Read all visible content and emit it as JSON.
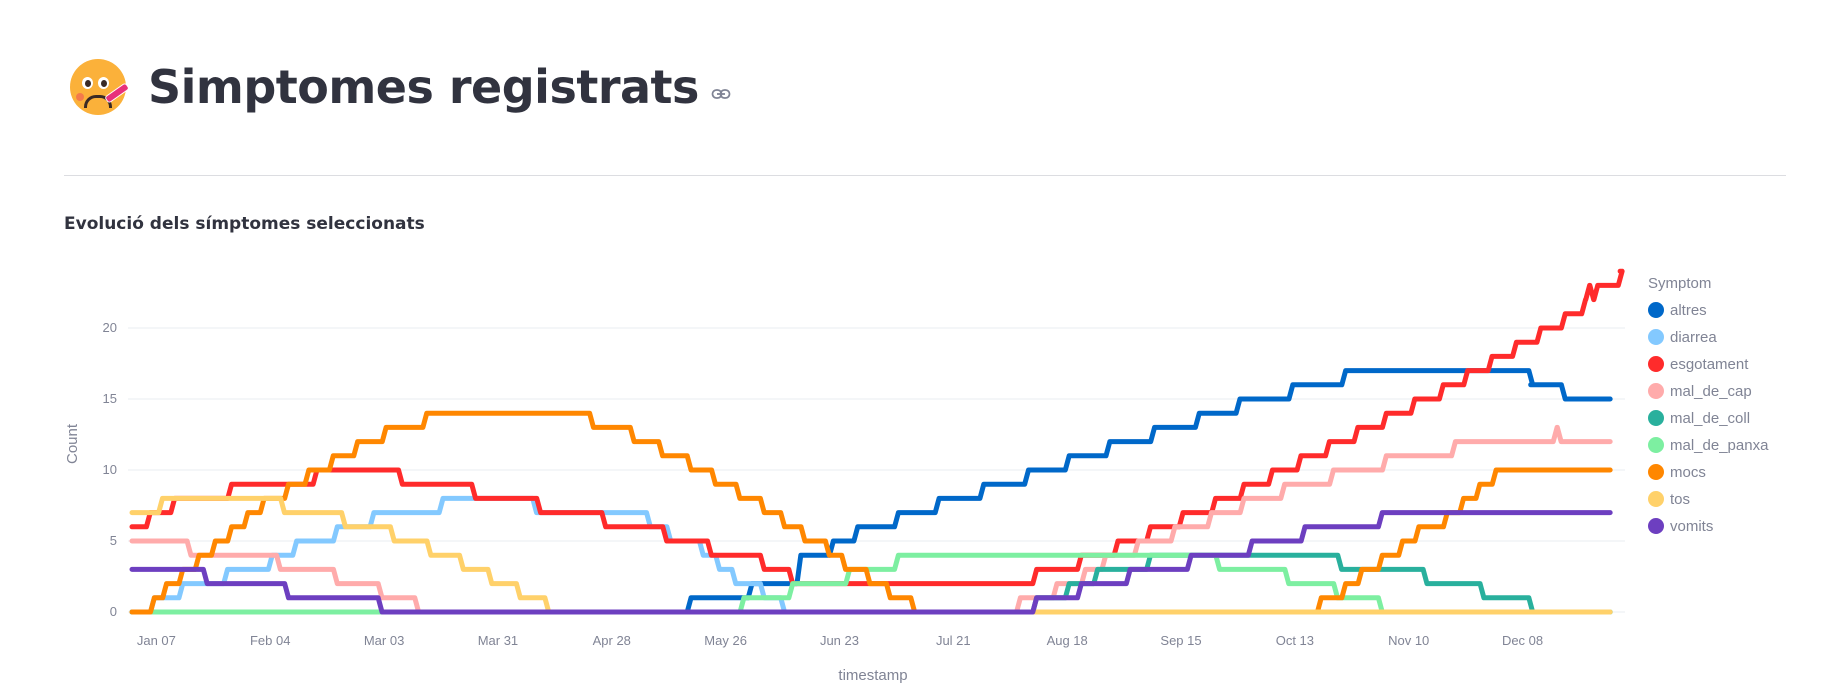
{
  "page": {
    "title": "Simptomes registrats",
    "title_icon": "face-with-thermometer-emoji",
    "anchor_icon": "link-icon",
    "subtitle": "Evolució dels símptomes seleccionats"
  },
  "chart_data": {
    "type": "line",
    "title": "Evolució dels símptomes seleccionats",
    "xlabel": "timestamp",
    "ylabel": "Count",
    "x_unit": "day of year (0 = Jan 01)",
    "xlim": [
      0,
      364
    ],
    "ylim": [
      -0.5,
      24.5
    ],
    "x_ticks": [
      {
        "day": 6,
        "label": "Jan 07"
      },
      {
        "day": 34,
        "label": "Feb 04"
      },
      {
        "day": 62,
        "label": "Mar 03"
      },
      {
        "day": 90,
        "label": "Mar 31"
      },
      {
        "day": 118,
        "label": "Apr 28"
      },
      {
        "day": 146,
        "label": "May 26"
      },
      {
        "day": 174,
        "label": "Jun 23"
      },
      {
        "day": 202,
        "label": "Jul 21"
      },
      {
        "day": 230,
        "label": "Aug 18"
      },
      {
        "day": 258,
        "label": "Sep 15"
      },
      {
        "day": 286,
        "label": "Oct 13"
      },
      {
        "day": 314,
        "label": "Nov 10"
      },
      {
        "day": 342,
        "label": "Dec 08"
      }
    ],
    "y_ticks": [
      0,
      5,
      10,
      15,
      20
    ],
    "grid": true,
    "legend": {
      "title": "Symptom",
      "position": "right"
    },
    "step": true,
    "series": [
      {
        "name": "altres",
        "color": "#0068c9",
        "steps": [
          [
            0,
            0
          ],
          [
            137,
            1
          ],
          [
            152,
            2
          ],
          [
            164,
            4
          ],
          [
            172,
            5
          ],
          [
            178,
            6
          ],
          [
            188,
            7
          ],
          [
            198,
            8
          ],
          [
            209,
            9
          ],
          [
            220,
            10
          ],
          [
            230,
            11
          ],
          [
            240,
            12
          ],
          [
            251,
            13
          ],
          [
            262,
            14
          ],
          [
            272,
            15
          ],
          [
            285,
            16
          ],
          [
            298,
            17
          ],
          [
            344,
            16
          ],
          [
            344,
            16
          ],
          [
            347,
            16
          ],
          [
            352,
            15
          ]
        ]
      },
      {
        "name": "diarrea",
        "color": "#83c9ff",
        "steps": [
          [
            0,
            0
          ],
          [
            5,
            1
          ],
          [
            12,
            2
          ],
          [
            23,
            3
          ],
          [
            34,
            4
          ],
          [
            40,
            5
          ],
          [
            50,
            6
          ],
          [
            59,
            7
          ],
          [
            76,
            8
          ],
          [
            99,
            7
          ],
          [
            127,
            6
          ],
          [
            132,
            5
          ],
          [
            140,
            4
          ],
          [
            144,
            3
          ],
          [
            148,
            2
          ],
          [
            155,
            1
          ],
          [
            160,
            0
          ]
        ]
      },
      {
        "name": "esgotament",
        "color": "#ff2b2b",
        "steps": [
          [
            0,
            6
          ],
          [
            4,
            7
          ],
          [
            10,
            8
          ],
          [
            24,
            9
          ],
          [
            45,
            10
          ],
          [
            66,
            9
          ],
          [
            84,
            8
          ],
          [
            100,
            7
          ],
          [
            116,
            6
          ],
          [
            131,
            5
          ],
          [
            142,
            4
          ],
          [
            155,
            3
          ],
          [
            162,
            2
          ],
          [
            193,
            2
          ],
          [
            222,
            3
          ],
          [
            233,
            4
          ],
          [
            242,
            5
          ],
          [
            250,
            6
          ],
          [
            258,
            7
          ],
          [
            266,
            8
          ],
          [
            273,
            9
          ],
          [
            280,
            10
          ],
          [
            287,
            11
          ],
          [
            294,
            12
          ],
          [
            301,
            13
          ],
          [
            308,
            14
          ],
          [
            315,
            15
          ],
          [
            322,
            16
          ],
          [
            328,
            17
          ],
          [
            334,
            18
          ],
          [
            340,
            19
          ],
          [
            346,
            20
          ],
          [
            352,
            21
          ],
          [
            357,
            22
          ],
          [
            358,
            23
          ],
          [
            359,
            22
          ],
          [
            360,
            23
          ],
          [
            366,
            24
          ]
        ]
      },
      {
        "name": "mal_de_cap",
        "color": "#ffabab",
        "steps": [
          [
            0,
            5
          ],
          [
            14,
            4
          ],
          [
            36,
            3
          ],
          [
            50,
            2
          ],
          [
            61,
            1
          ],
          [
            70,
            0
          ],
          [
            218,
            1
          ],
          [
            227,
            2
          ],
          [
            234,
            3
          ],
          [
            239,
            4
          ],
          [
            247,
            5
          ],
          [
            256,
            6
          ],
          [
            265,
            7
          ],
          [
            273,
            8
          ],
          [
            283,
            9
          ],
          [
            295,
            10
          ],
          [
            308,
            11
          ],
          [
            325,
            12
          ],
          [
            350,
            13
          ],
          [
            351,
            12
          ]
        ]
      },
      {
        "name": "mal_de_coll",
        "color": "#29b09d",
        "steps": [
          [
            0,
            0
          ],
          [
            222,
            1
          ],
          [
            230,
            2
          ],
          [
            237,
            3
          ],
          [
            250,
            4
          ],
          [
            264,
            4
          ],
          [
            268,
            4
          ],
          [
            276,
            4
          ],
          [
            297,
            3
          ],
          [
            318,
            2
          ],
          [
            332,
            1
          ],
          [
            344,
            0
          ]
        ]
      },
      {
        "name": "mal_de_panxa",
        "color": "#7defa1",
        "steps": [
          [
            0,
            0
          ],
          [
            150,
            1
          ],
          [
            162,
            2
          ],
          [
            176,
            3
          ],
          [
            188,
            4
          ],
          [
            250,
            4
          ],
          [
            267,
            3
          ],
          [
            284,
            2
          ],
          [
            296,
            1
          ],
          [
            307,
            0
          ]
        ]
      },
      {
        "name": "mocs",
        "color": "#ff8700",
        "steps": [
          [
            0,
            0
          ],
          [
            5,
            1
          ],
          [
            8,
            2
          ],
          [
            12,
            3
          ],
          [
            16,
            4
          ],
          [
            20,
            5
          ],
          [
            24,
            6
          ],
          [
            28,
            7
          ],
          [
            32,
            8
          ],
          [
            38,
            9
          ],
          [
            43,
            10
          ],
          [
            49,
            11
          ],
          [
            55,
            12
          ],
          [
            62,
            13
          ],
          [
            72,
            14
          ],
          [
            113,
            13
          ],
          [
            123,
            12
          ],
          [
            130,
            11
          ],
          [
            137,
            10
          ],
          [
            143,
            9
          ],
          [
            149,
            8
          ],
          [
            155,
            7
          ],
          [
            160,
            6
          ],
          [
            165,
            5
          ],
          [
            171,
            4
          ],
          [
            175,
            3
          ],
          [
            181,
            2
          ],
          [
            186,
            1
          ],
          [
            192,
            0
          ],
          [
            292,
            1
          ],
          [
            298,
            2
          ],
          [
            302,
            3
          ],
          [
            307,
            4
          ],
          [
            312,
            5
          ],
          [
            316,
            6
          ],
          [
            323,
            7
          ],
          [
            327,
            8
          ],
          [
            331,
            9
          ],
          [
            335,
            10
          ]
        ]
      },
      {
        "name": "tos",
        "color": "#ffd16a",
        "steps": [
          [
            0,
            7
          ],
          [
            7,
            8
          ],
          [
            37,
            7
          ],
          [
            52,
            6
          ],
          [
            64,
            5
          ],
          [
            73,
            4
          ],
          [
            81,
            3
          ],
          [
            88,
            2
          ],
          [
            95,
            1
          ],
          [
            102,
            0
          ]
        ]
      },
      {
        "name": "vomits",
        "color": "#6d3fc0",
        "steps": [
          [
            0,
            3
          ],
          [
            18,
            2
          ],
          [
            38,
            1
          ],
          [
            61,
            0
          ],
          [
            222,
            1
          ],
          [
            233,
            2
          ],
          [
            245,
            3
          ],
          [
            260,
            4
          ],
          [
            275,
            5
          ],
          [
            288,
            6
          ],
          [
            307,
            7
          ]
        ]
      }
    ]
  }
}
